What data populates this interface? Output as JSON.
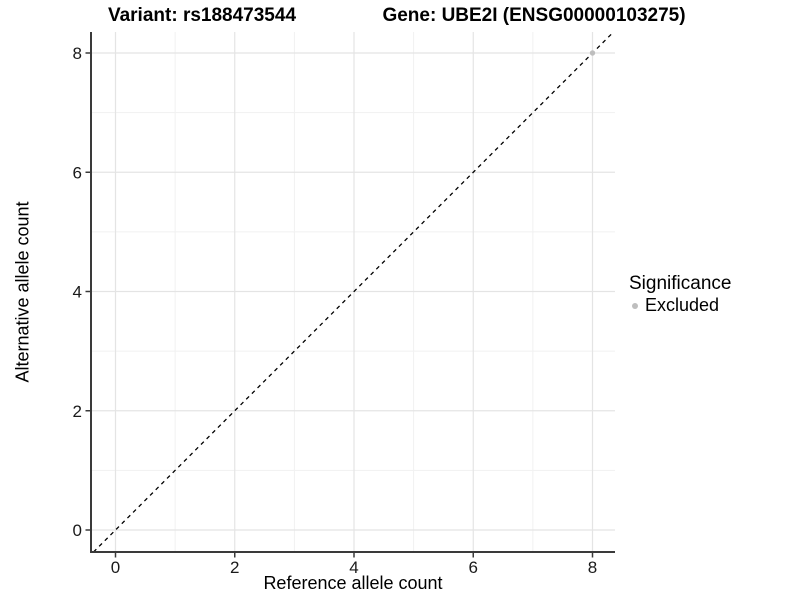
{
  "chart_data": {
    "type": "scatter",
    "title_left": "Variant: rs188473544",
    "title_right": "Gene: UBE2I (ENSG00000103275)",
    "xlabel": "Reference allele count",
    "ylabel": "Alternative allele count",
    "xlim": [
      -0.4,
      8.4
    ],
    "ylim": [
      -0.4,
      8.4
    ],
    "x_ticks": [
      0,
      2,
      4,
      6,
      8
    ],
    "y_ticks": [
      0,
      2,
      4,
      6,
      8
    ],
    "x_minor_ticks": [
      1,
      3,
      5,
      7
    ],
    "y_minor_ticks": [
      1,
      3,
      5,
      7
    ],
    "grid": true,
    "reference_line": {
      "type": "identity",
      "slope": 1,
      "intercept": 0,
      "linestyle": "dashed",
      "color": "#000000"
    },
    "series": [
      {
        "name": "Excluded",
        "color": "#bebebe",
        "points": [
          {
            "x": 8,
            "y": 8
          }
        ]
      }
    ],
    "legend": {
      "title": "Significance",
      "position": "right",
      "items": [
        {
          "label": "Excluded",
          "color": "#bebebe"
        }
      ]
    },
    "colors": {
      "background": "#ffffff",
      "grid_major": "#e4e4e4",
      "grid_minor": "#f1f1f1",
      "axis_line": "#3a3a3a",
      "tick_label": "#1a1a1a"
    }
  }
}
